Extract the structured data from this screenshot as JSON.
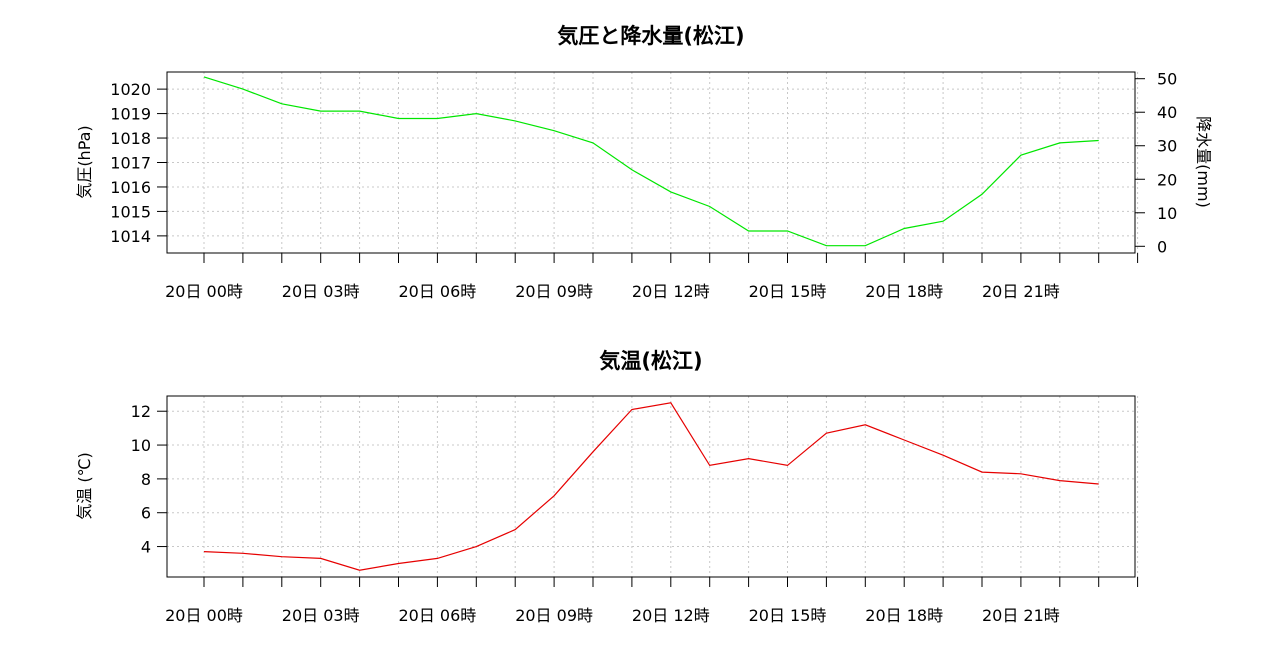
{
  "chart_data": [
    {
      "type": "line",
      "title": "気圧と降水量(松江)",
      "ylabel": "気圧(hPa)",
      "y2label": "降水量(mm)",
      "x_tick_labels": [
        "20日  00時",
        "20日  03時",
        "20日  06時",
        "20日  09時",
        "20日  12時",
        "20日  15時",
        "20日  18時",
        "20日  21時"
      ],
      "x_hours": [
        0,
        1,
        2,
        3,
        4,
        5,
        6,
        7,
        8,
        9,
        10,
        11,
        12,
        13,
        14,
        15,
        16,
        17,
        18,
        19,
        20,
        21,
        22,
        23
      ],
      "ylim": [
        1013.3,
        1020.7
      ],
      "y_ticks": [
        1014,
        1015,
        1016,
        1017,
        1018,
        1019,
        1020
      ],
      "y2lim": [
        -2,
        52
      ],
      "y2_ticks": [
        0,
        10,
        20,
        30,
        40,
        50
      ],
      "grid": true,
      "series": [
        {
          "color": "#00e600",
          "axis": "left",
          "values": [
            1020.5,
            1020.0,
            1019.4,
            1019.1,
            1019.1,
            1018.8,
            1018.8,
            1019.0,
            1018.7,
            1018.3,
            1017.8,
            1016.7,
            1015.8,
            1015.2,
            1014.2,
            1014.2,
            1013.6,
            1013.6,
            1014.3,
            1014.6,
            1015.7,
            1017.3,
            1017.8,
            1017.9
          ]
        }
      ]
    },
    {
      "type": "line",
      "title": "気温(松江)",
      "ylabel": "気温 (℃)",
      "x_tick_labels": [
        "20日  00時",
        "20日  03時",
        "20日  06時",
        "20日  09時",
        "20日  12時",
        "20日  15時",
        "20日  18時",
        "20日  21時"
      ],
      "x_hours": [
        0,
        1,
        2,
        3,
        4,
        5,
        6,
        7,
        8,
        9,
        10,
        11,
        12,
        13,
        14,
        15,
        16,
        17,
        18,
        19,
        20,
        21,
        22,
        23
      ],
      "ylim": [
        2.2,
        12.9
      ],
      "y_ticks": [
        4,
        6,
        8,
        10,
        12
      ],
      "grid": true,
      "series": [
        {
          "color": "#e60000",
          "axis": "left",
          "values": [
            3.7,
            3.6,
            3.4,
            3.3,
            2.6,
            3.0,
            3.3,
            4.0,
            5.0,
            7.0,
            9.6,
            12.1,
            12.5,
            8.8,
            9.2,
            8.8,
            10.7,
            11.2,
            10.3,
            9.4,
            8.4,
            8.3,
            7.9,
            7.7
          ]
        }
      ]
    }
  ]
}
